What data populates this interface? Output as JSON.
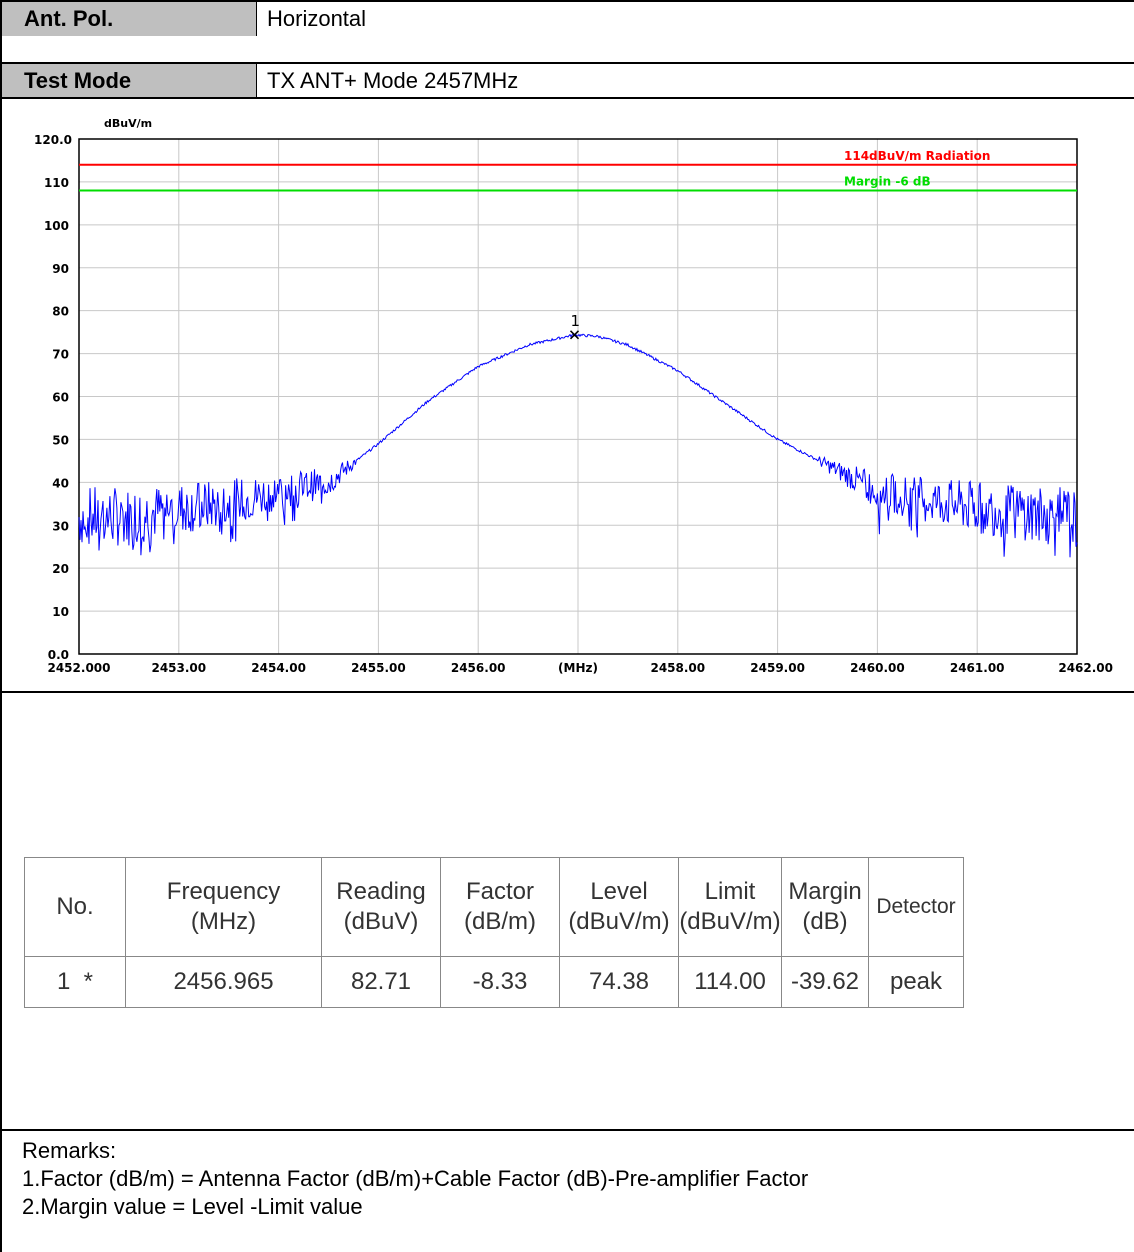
{
  "header": {
    "ant_pol_label": "Ant. Pol.",
    "ant_pol_value": "Horizontal",
    "test_mode_label": "Test Mode",
    "test_mode_value": "TX ANT+ Mode 2457MHz"
  },
  "chart_data": {
    "type": "line",
    "ylabel": "dBuV/m",
    "xlabel": "(MHz)",
    "xlim": [
      2452.0,
      2462.0
    ],
    "ylim": [
      0.0,
      120.0
    ],
    "y_ticks": [
      "0.0",
      "10",
      "20",
      "30",
      "40",
      "50",
      "60",
      "70",
      "80",
      "90",
      "100",
      "110",
      "120.0"
    ],
    "x_ticks": [
      "2452.000",
      "2453.00",
      "2454.00",
      "2455.00",
      "2456.00",
      "(MHz)",
      "2458.00",
      "2459.00",
      "2460.00",
      "2461.00",
      "2462.00"
    ],
    "grid": true,
    "limit_lines": [
      {
        "label": "114dBuV/m  Radiation",
        "value": 114,
        "color": "#ff0000"
      },
      {
        "label": "Margin -6 dB",
        "value": 108,
        "color": "#00dd00"
      }
    ],
    "series": [
      {
        "color": "#0000ff",
        "x": [
          2452.0,
          2452.5,
          2453.0,
          2453.5,
          2454.0,
          2454.5,
          2455.0,
          2455.5,
          2456.0,
          2456.5,
          2456.965,
          2457.2,
          2457.5,
          2458.0,
          2458.5,
          2459.0,
          2459.5,
          2460.0,
          2460.5,
          2461.0,
          2461.5,
          2462.0
        ],
        "y": [
          32,
          32,
          34,
          35,
          38,
          40,
          49,
          59,
          67,
          72,
          74.38,
          74,
          72,
          66,
          58,
          50,
          44,
          38,
          36,
          34,
          33,
          31
        ]
      }
    ],
    "markers": [
      {
        "label": "1",
        "x": 2456.965,
        "y": 74.38
      }
    ]
  },
  "table": {
    "headers": [
      [
        "No."
      ],
      [
        "Frequency",
        "(MHz)"
      ],
      [
        "Reading",
        "(dBuV)"
      ],
      [
        "Factor",
        "(dB/m)"
      ],
      [
        "Level",
        "(dBuV/m)"
      ],
      [
        "Limit",
        "(dBuV/m)"
      ],
      [
        "Margin",
        "(dB)"
      ],
      [
        "Detector"
      ]
    ],
    "rows": [
      [
        "1  *",
        "2456.965",
        "82.71",
        "-8.33",
        "74.38",
        "114.00",
        "-39.62",
        "peak"
      ]
    ]
  },
  "remarks": {
    "title": "Remarks:",
    "line1": "1.Factor (dB/m) = Antenna Factor (dB/m)+Cable Factor (dB)-Pre-amplifier Factor",
    "line2": "2.Margin value = Level -Limit value"
  }
}
